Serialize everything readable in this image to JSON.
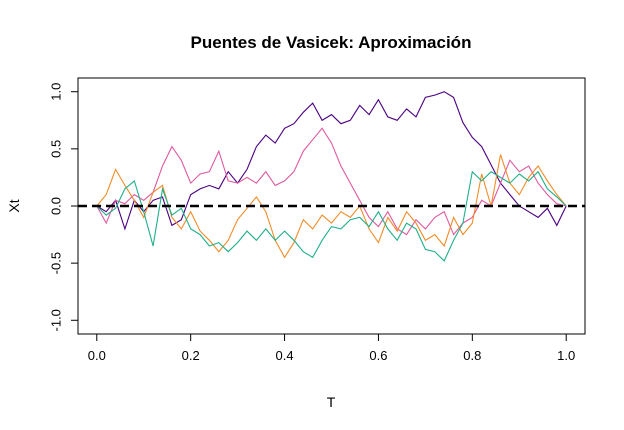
{
  "chart_data": {
    "type": "line",
    "title": "Puentes de Vasicek: Aproximación",
    "xlabel": "T",
    "ylabel": "Xt",
    "xlim": [
      -0.04,
      1.04
    ],
    "ylim": [
      -1.12,
      1.12
    ],
    "xticks": [
      0.0,
      0.2,
      0.4,
      0.6,
      0.8,
      1.0
    ],
    "xtick_labels": [
      "0.0",
      "0.2",
      "0.4",
      "0.6",
      "0.8",
      "1.0"
    ],
    "yticks": [
      -1.0,
      -0.5,
      0.0,
      0.5,
      1.0
    ],
    "ytick_labels": [
      "-1.0",
      "-0.5",
      "0.0",
      "0.5",
      "1.0"
    ],
    "grid": false,
    "reference_line": {
      "y": 0,
      "style": "dashed",
      "color": "#000000"
    },
    "series": [
      {
        "color": "#4B0082",
        "x": [
          0,
          0.02,
          0.04,
          0.06,
          0.08,
          0.1,
          0.12,
          0.14,
          0.16,
          0.18,
          0.2,
          0.22,
          0.24,
          0.26,
          0.28,
          0.3,
          0.32,
          0.34,
          0.36,
          0.38,
          0.4,
          0.42,
          0.44,
          0.46,
          0.48,
          0.5,
          0.52,
          0.54,
          0.56,
          0.58,
          0.6,
          0.62,
          0.64,
          0.66,
          0.68,
          0.7,
          0.72,
          0.74,
          0.76,
          0.78,
          0.8,
          0.82,
          0.84,
          0.86,
          0.88,
          0.9,
          0.92,
          0.94,
          0.96,
          0.98,
          1.0
        ],
        "values": [
          0,
          -0.05,
          0.05,
          -0.2,
          0.05,
          -0.05,
          0.05,
          0.08,
          -0.17,
          -0.12,
          0.1,
          0.15,
          0.18,
          0.15,
          0.3,
          0.2,
          0.32,
          0.52,
          0.62,
          0.55,
          0.68,
          0.72,
          0.82,
          0.9,
          0.75,
          0.8,
          0.72,
          0.75,
          0.88,
          0.8,
          0.93,
          0.78,
          0.75,
          0.85,
          0.78,
          0.95,
          0.97,
          1.0,
          0.95,
          0.73,
          0.6,
          0.52,
          0.36,
          0.2,
          0.1,
          0.0,
          -0.05,
          -0.1,
          -0.02,
          -0.17,
          0
        ]
      },
      {
        "color": "#E0599F",
        "x": [
          0,
          0.02,
          0.04,
          0.06,
          0.08,
          0.1,
          0.12,
          0.14,
          0.16,
          0.18,
          0.2,
          0.22,
          0.24,
          0.26,
          0.28,
          0.3,
          0.32,
          0.34,
          0.36,
          0.38,
          0.4,
          0.42,
          0.44,
          0.46,
          0.48,
          0.5,
          0.52,
          0.54,
          0.56,
          0.58,
          0.6,
          0.62,
          0.64,
          0.66,
          0.68,
          0.7,
          0.72,
          0.74,
          0.76,
          0.78,
          0.8,
          0.82,
          0.84,
          0.86,
          0.88,
          0.9,
          0.92,
          0.94,
          0.96,
          0.98,
          1.0
        ],
        "values": [
          0,
          -0.15,
          0.05,
          0.02,
          0.1,
          0.05,
          0.12,
          0.35,
          0.52,
          0.4,
          0.2,
          0.28,
          0.3,
          0.48,
          0.22,
          0.2,
          0.25,
          0.2,
          0.3,
          0.18,
          0.22,
          0.3,
          0.48,
          0.58,
          0.68,
          0.55,
          0.35,
          0.2,
          0.05,
          -0.1,
          -0.18,
          -0.05,
          -0.2,
          -0.25,
          -0.12,
          -0.2,
          -0.1,
          -0.05,
          -0.25,
          -0.15,
          -0.1,
          0.05,
          0.0,
          0.2,
          0.4,
          0.3,
          0.35,
          0.2,
          0.1,
          0.02,
          0
        ]
      },
      {
        "color": "#F28C28",
        "x": [
          0,
          0.02,
          0.04,
          0.06,
          0.08,
          0.1,
          0.12,
          0.14,
          0.16,
          0.18,
          0.2,
          0.22,
          0.24,
          0.26,
          0.28,
          0.3,
          0.32,
          0.34,
          0.36,
          0.38,
          0.4,
          0.42,
          0.44,
          0.46,
          0.48,
          0.5,
          0.52,
          0.54,
          0.56,
          0.58,
          0.6,
          0.62,
          0.64,
          0.66,
          0.68,
          0.7,
          0.72,
          0.74,
          0.76,
          0.78,
          0.8,
          0.82,
          0.84,
          0.86,
          0.88,
          0.9,
          0.92,
          0.94,
          0.96,
          0.98,
          1.0
        ],
        "values": [
          0,
          0.1,
          0.32,
          0.18,
          0.05,
          -0.1,
          0.12,
          0.18,
          -0.1,
          -0.2,
          -0.05,
          -0.22,
          -0.3,
          -0.4,
          -0.3,
          -0.12,
          -0.02,
          0.08,
          -0.05,
          -0.3,
          -0.45,
          -0.32,
          -0.12,
          -0.2,
          -0.08,
          -0.15,
          -0.05,
          -0.1,
          0.0,
          -0.2,
          -0.32,
          -0.1,
          -0.22,
          -0.05,
          -0.15,
          -0.3,
          -0.25,
          -0.35,
          -0.1,
          -0.25,
          -0.15,
          0.28,
          0.0,
          0.45,
          0.2,
          0.1,
          0.25,
          0.35,
          0.22,
          0.1,
          0
        ]
      },
      {
        "color": "#1FB08A",
        "x": [
          0,
          0.02,
          0.04,
          0.06,
          0.08,
          0.1,
          0.12,
          0.14,
          0.16,
          0.18,
          0.2,
          0.22,
          0.24,
          0.26,
          0.28,
          0.3,
          0.32,
          0.34,
          0.36,
          0.38,
          0.4,
          0.42,
          0.44,
          0.46,
          0.48,
          0.5,
          0.52,
          0.54,
          0.56,
          0.58,
          0.6,
          0.62,
          0.64,
          0.66,
          0.68,
          0.7,
          0.72,
          0.74,
          0.76,
          0.78,
          0.8,
          0.82,
          0.84,
          0.86,
          0.88,
          0.9,
          0.92,
          0.94,
          0.96,
          0.98,
          1.0
        ],
        "values": [
          0,
          -0.08,
          -0.02,
          0.15,
          0.22,
          -0.05,
          -0.35,
          0.15,
          -0.08,
          -0.02,
          -0.2,
          -0.25,
          -0.35,
          -0.32,
          -0.4,
          -0.32,
          -0.22,
          -0.3,
          -0.2,
          -0.3,
          -0.22,
          -0.3,
          -0.4,
          -0.45,
          -0.3,
          -0.18,
          -0.2,
          -0.12,
          -0.1,
          -0.18,
          -0.05,
          -0.2,
          -0.3,
          -0.15,
          -0.2,
          -0.38,
          -0.4,
          -0.48,
          -0.3,
          -0.15,
          0.3,
          0.22,
          0.3,
          0.25,
          0.2,
          0.28,
          0.22,
          0.3,
          0.15,
          0.08,
          0
        ]
      }
    ]
  }
}
